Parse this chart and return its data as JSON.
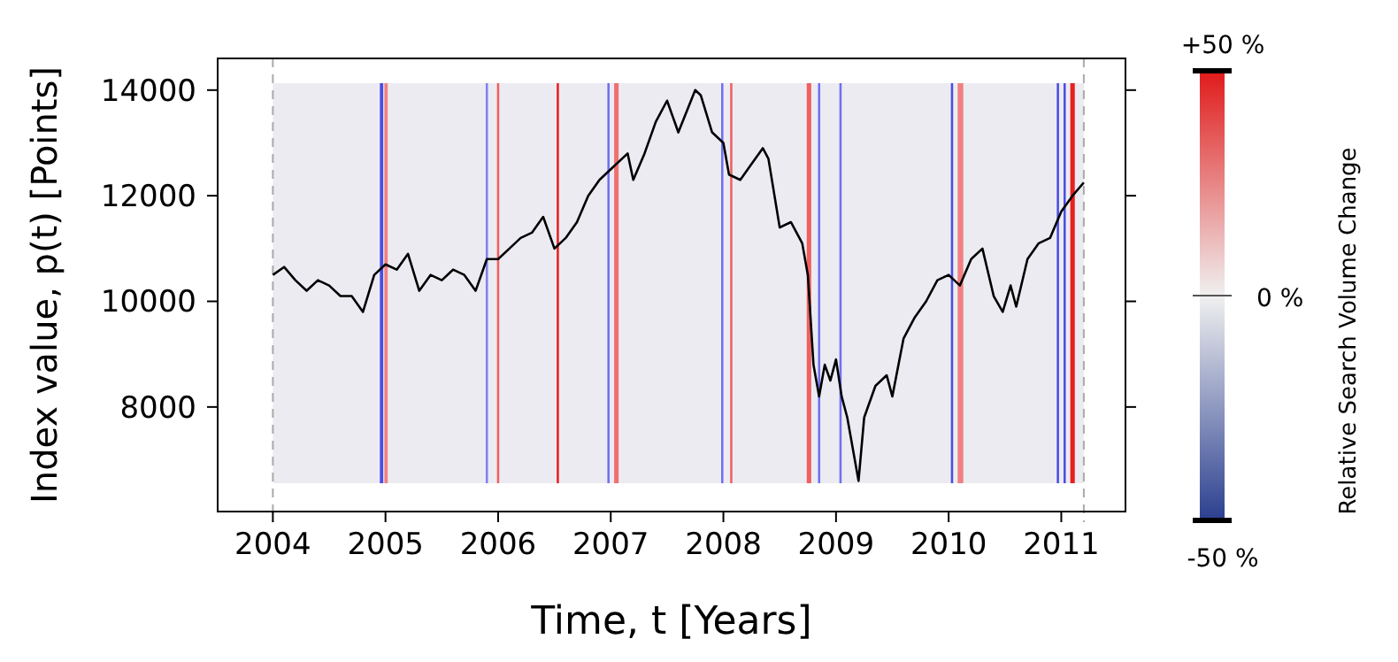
{
  "chart_data": {
    "type": "line",
    "xlabel": "Time, t [Years]",
    "ylabel": "Index value, p(t) [Points]",
    "clabel": "Relative Search Volume Change",
    "xlim": [
      2003.51,
      2011.57
    ],
    "ylim": [
      6020,
      14600
    ],
    "xticks": [
      2004,
      2005,
      2006,
      2007,
      2008,
      2009,
      2010,
      2011
    ],
    "yticks": [
      8000,
      10000,
      12000,
      14000
    ],
    "annotations": [
      "+50 %",
      "0 %",
      "-50 %"
    ],
    "marker": "none",
    "line_style": "solid",
    "series": [
      {
        "color": "#000000",
        "x": [
          2004.0,
          2004.1,
          2004.2,
          2004.3,
          2004.4,
          2004.5,
          2004.6,
          2004.7,
          2004.8,
          2004.9,
          2005.0,
          2005.1,
          2005.2,
          2005.3,
          2005.4,
          2005.5,
          2005.6,
          2005.7,
          2005.8,
          2005.9,
          2006.0,
          2006.1,
          2006.2,
          2006.3,
          2006.4,
          2006.5,
          2006.6,
          2006.7,
          2006.8,
          2006.9,
          2007.0,
          2007.15,
          2007.2,
          2007.3,
          2007.4,
          2007.5,
          2007.55,
          2007.6,
          2007.75,
          2007.8,
          2007.9,
          2008.0,
          2008.05,
          2008.15,
          2008.25,
          2008.35,
          2008.4,
          2008.5,
          2008.6,
          2008.7,
          2008.75,
          2008.8,
          2008.85,
          2008.9,
          2008.95,
          2009.0,
          2009.05,
          2009.1,
          2009.2,
          2009.25,
          2009.35,
          2009.45,
          2009.5,
          2009.6,
          2009.7,
          2009.8,
          2009.9,
          2010.0,
          2010.1,
          2010.2,
          2010.3,
          2010.4,
          2010.48,
          2010.55,
          2010.6,
          2010.7,
          2010.8,
          2010.9,
          2011.0,
          2011.1,
          2011.2
        ],
        "values": [
          10500,
          10650,
          10400,
          10200,
          10400,
          10300,
          10100,
          10100,
          9800,
          10500,
          10700,
          10600,
          10900,
          10200,
          10500,
          10400,
          10600,
          10500,
          10200,
          10800,
          10800,
          11000,
          11200,
          11300,
          11600,
          11000,
          11200,
          11500,
          12000,
          12300,
          12500,
          12800,
          12300,
          12800,
          13400,
          13800,
          13500,
          13200,
          14000,
          13900,
          13200,
          13000,
          12400,
          12300,
          12600,
          12900,
          12700,
          11400,
          11500,
          11100,
          10500,
          8800,
          8200,
          8800,
          8500,
          8900,
          8200,
          7800,
          6600,
          7800,
          8400,
          8600,
          8200,
          9300,
          9700,
          10000,
          10400,
          10500,
          10300,
          10800,
          11000,
          10100,
          9800,
          10300,
          9900,
          10800,
          11100,
          11200,
          11700,
          12000,
          12250
        ]
      }
    ],
    "ref_lines": [
      {
        "axis": "x",
        "value": 2004.0,
        "color": "#aaaaaa",
        "line_style": "dashed"
      },
      {
        "axis": "x",
        "value": 2011.2,
        "color": "#aaaaaa",
        "line_style": "dashed"
      }
    ],
    "bands": [
      {
        "axis": "x",
        "from": 2004.0,
        "to": 2011.2,
        "color": "#ecebf2"
      },
      {
        "axis": "x",
        "from": 2004.95,
        "to": 2004.98,
        "color": "#4a4ee0"
      },
      {
        "axis": "x",
        "from": 2004.99,
        "to": 2005.02,
        "color": "#f08080"
      },
      {
        "axis": "x",
        "from": 2005.89,
        "to": 2005.91,
        "color": "#8080f0"
      },
      {
        "axis": "x",
        "from": 2005.99,
        "to": 2006.01,
        "color": "#f06060"
      },
      {
        "axis": "x",
        "from": 2006.52,
        "to": 2006.54,
        "color": "#e82020"
      },
      {
        "axis": "x",
        "from": 2006.97,
        "to": 2006.99,
        "color": "#7070f0"
      },
      {
        "axis": "x",
        "from": 2007.03,
        "to": 2007.07,
        "color": "#f07070"
      },
      {
        "axis": "x",
        "from": 2007.98,
        "to": 2008.0,
        "color": "#7070f0"
      },
      {
        "axis": "x",
        "from": 2008.06,
        "to": 2008.08,
        "color": "#f06060"
      },
      {
        "axis": "x",
        "from": 2008.74,
        "to": 2008.78,
        "color": "#f06060"
      },
      {
        "axis": "x",
        "from": 2008.84,
        "to": 2008.86,
        "color": "#7070f0"
      },
      {
        "axis": "x",
        "from": 2009.03,
        "to": 2009.05,
        "color": "#7070f0"
      },
      {
        "axis": "x",
        "from": 2010.02,
        "to": 2010.04,
        "color": "#4a4ee0"
      },
      {
        "axis": "x",
        "from": 2010.08,
        "to": 2010.13,
        "color": "#f08080"
      },
      {
        "axis": "x",
        "from": 2010.96,
        "to": 2010.98,
        "color": "#4a4ee0"
      },
      {
        "axis": "x",
        "from": 2011.02,
        "to": 2011.04,
        "color": "#4a4ee0"
      },
      {
        "axis": "x",
        "from": 2011.08,
        "to": 2011.12,
        "color": "#e82020"
      }
    ]
  }
}
